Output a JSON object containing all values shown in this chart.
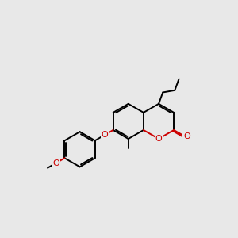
{
  "bg_color": "#e8e8e8",
  "bond_color": "#000000",
  "heteroatom_color": "#cc0000",
  "bond_lw": 1.4,
  "figsize": [
    3.0,
    3.0
  ],
  "dpi": 100,
  "xlim": [
    0,
    10
  ],
  "ylim": [
    0,
    10
  ]
}
